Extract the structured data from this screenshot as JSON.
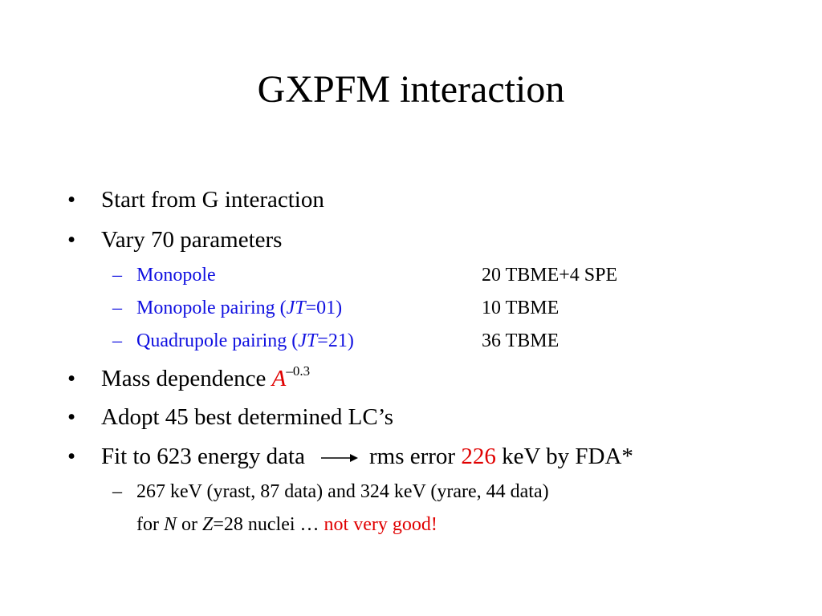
{
  "title": "GXPFM interaction",
  "bullets": {
    "b1": "Start from G interaction",
    "b2": "Vary 70 parameters",
    "b3_text": "Mass dependence ",
    "b3_var": "A",
    "b3_exp": "–0.3",
    "b4": "Adopt 45 best determined LC’s",
    "b5_text": "Fit to 623 energy data",
    "b5_rms": "rms error ",
    "b5_value": "226",
    "b5_tail": " keV by FDA*"
  },
  "params": [
    {
      "label": "Monopole",
      "value": "20 TBME+4 SPE"
    },
    {
      "label_pre": "Monopole pairing (",
      "label_var": "JT",
      "label_post": "=01)",
      "value": "10 TBME"
    },
    {
      "label_pre": "Quadrupole pairing (",
      "label_var": "JT",
      "label_post": "=21)",
      "value": "36 TBME"
    }
  ],
  "sub": {
    "line1": "267 keV (yrast, 87 data) and 324 keV (yrare, 44 data)",
    "l2_for": "for ",
    "l2_N": "N",
    "l2_or": " or ",
    "l2_Z": "Z",
    "l2_rest": "=28 nuclei … ",
    "l2_red": "not very good!"
  },
  "colors": {
    "blue": "#1010e0",
    "red": "#e00000"
  },
  "icons": {
    "bullet": "•",
    "dash": "–",
    "arrow": "right-arrow-icon"
  }
}
